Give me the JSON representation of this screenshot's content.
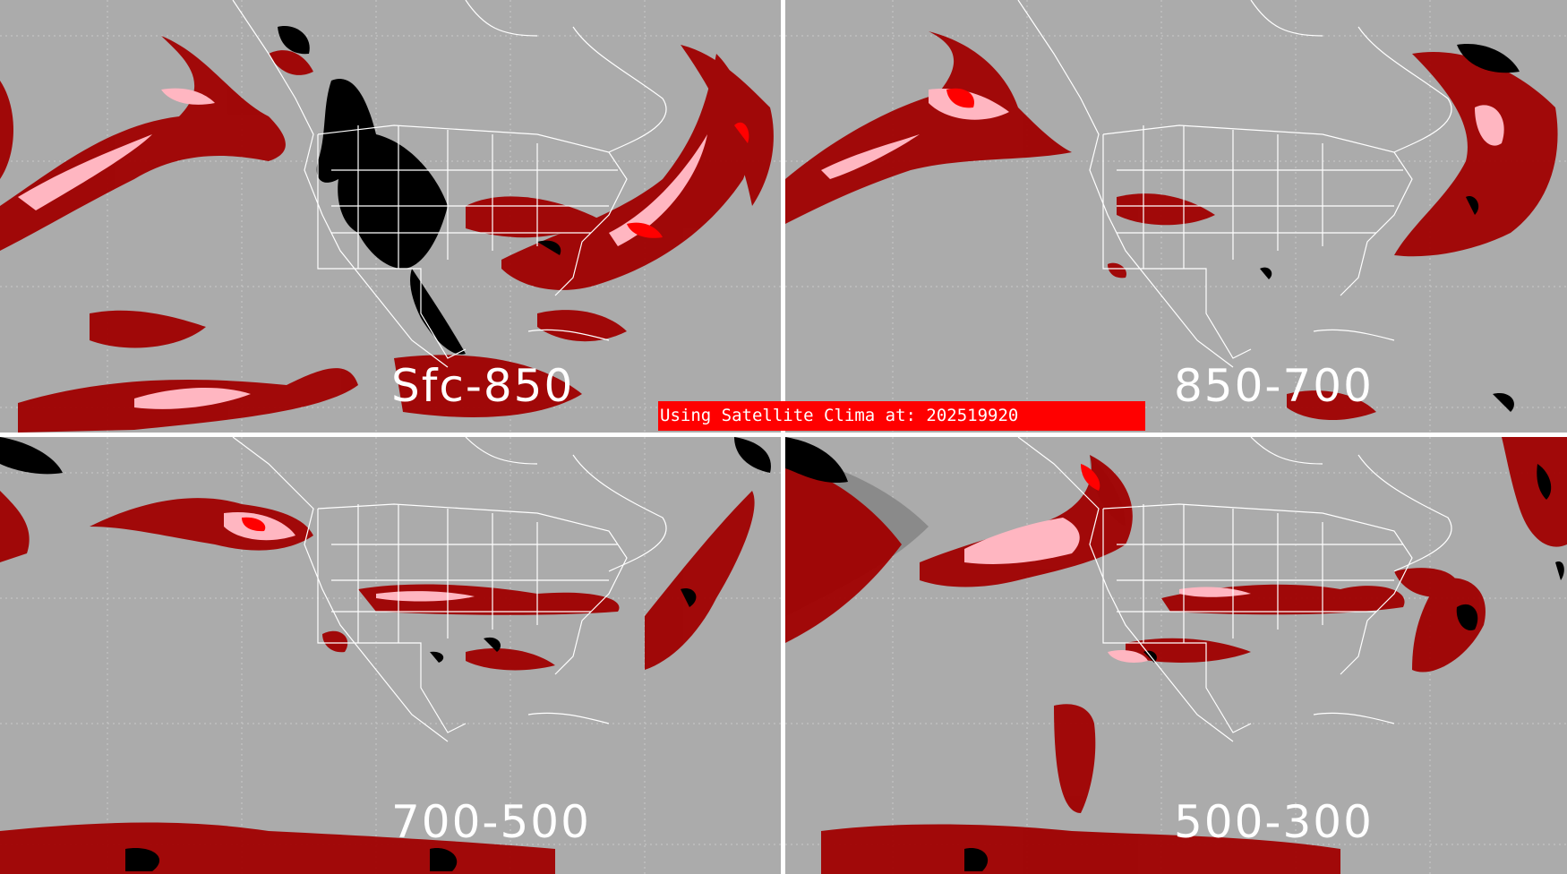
{
  "banner": {
    "text": "Using Satellite Clima at: 202519920"
  },
  "colors": {
    "background": "#ababab",
    "dark_red": "#a00000",
    "pink": "#ffb6c1",
    "bright_red": "#ff0000",
    "dim_gray": "#8a8a8a",
    "black": "#000000",
    "outline": "#ffffff"
  },
  "panels": [
    {
      "id": "sfc-850",
      "label": "Sfc-850"
    },
    {
      "id": "850-700",
      "label": "850-700"
    },
    {
      "id": "700-500",
      "label": "700-500"
    },
    {
      "id": "500-300",
      "label": "500-300"
    }
  ]
}
